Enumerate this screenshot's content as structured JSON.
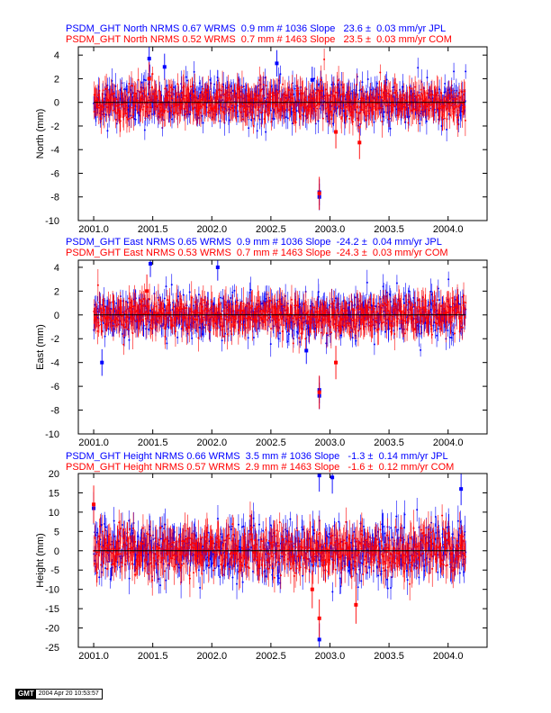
{
  "colors": {
    "jpl": "#0000ff",
    "com": "#ff0000",
    "zero_line": "#000000"
  },
  "stamp": {
    "logo": "GMT",
    "timestamp": "2004 Apr 20 10:53:57"
  },
  "chart_data": [
    {
      "type": "scatter",
      "headers": [
        "PSDM_GHT North NRMS 0.67 WRMS  0.9 mm # 1036 Slope   23.6 ±  0.03 mm/yr JPL",
        "PSDM_GHT North NRMS 0.52 WRMS  0.7 mm # 1463 Slope   23.5 ±  0.03 mm/yr COM"
      ],
      "ylabel": "North (mm)",
      "xlim": [
        2000.87,
        2004.33
      ],
      "ylim": [
        -10,
        4.7
      ],
      "x_ticks": [
        2001.0,
        2001.5,
        2002.0,
        2002.5,
        2003.0,
        2003.5,
        2004.0
      ],
      "x_tick_labels": [
        "2001.0",
        "2001.5",
        "2002.0",
        "2002.5",
        "2003.0",
        "2003.5",
        "2004.0"
      ],
      "y_ticks": [
        -10,
        -8,
        -6,
        -4,
        -2,
        0,
        2,
        4
      ],
      "y_tick_labels": [
        "-10",
        "-8",
        "-6",
        "-4",
        "-2",
        "0",
        "2",
        "4"
      ],
      "series": [
        {
          "name": "JPL",
          "color": "#0000ff",
          "count": 1036,
          "wrms": 0.9,
          "sigma": 0.8,
          "x_range": [
            2001.0,
            2004.15
          ],
          "outliers": [
            [
              2001.47,
              3.7
            ],
            [
              2002.55,
              3.3
            ],
            [
              2002.91,
              -8.0
            ],
            [
              2002.91,
              -7.6
            ],
            [
              2001.6,
              3.0
            ],
            [
              2002.85,
              1.9
            ]
          ]
        },
        {
          "name": "COM",
          "color": "#ff0000",
          "count": 1463,
          "wrms": 0.7,
          "sigma": 1.0,
          "x_range": [
            2001.0,
            2004.15
          ],
          "outliers": [
            [
              2002.91,
              -7.7
            ],
            [
              2001.47,
              2.0
            ],
            [
              2003.05,
              -2.5
            ],
            [
              2003.25,
              -3.4
            ]
          ]
        }
      ]
    },
    {
      "type": "scatter",
      "headers": [
        "PSDM_GHT East NRMS 0.65 WRMS  0.9 mm # 1036 Slope  -24.2 ±  0.04 mm/yr JPL",
        "PSDM_GHT East NRMS 0.53 WRMS  0.7 mm # 1463 Slope  -24.3 ±  0.03 mm/yr COM"
      ],
      "ylabel": "East (mm)",
      "xlim": [
        2000.87,
        2004.33
      ],
      "ylim": [
        -10,
        4.6
      ],
      "x_ticks": [
        2001.0,
        2001.5,
        2002.0,
        2002.5,
        2003.0,
        2003.5,
        2004.0
      ],
      "x_tick_labels": [
        "2001.0",
        "2001.5",
        "2002.0",
        "2002.5",
        "2003.0",
        "2003.5",
        "2004.0"
      ],
      "y_ticks": [
        -10,
        -8,
        -6,
        -4,
        -2,
        0,
        2,
        4
      ],
      "y_tick_labels": [
        "-10",
        "-8",
        "-6",
        "-4",
        "-2",
        "0",
        "2",
        "4"
      ],
      "series": [
        {
          "name": "JPL",
          "color": "#0000ff",
          "count": 1036,
          "wrms": 0.9,
          "sigma": 0.8,
          "x_range": [
            2001.0,
            2004.15
          ],
          "outliers": [
            [
              2001.48,
              4.3
            ],
            [
              2002.05,
              4.0
            ],
            [
              2002.91,
              -6.8
            ],
            [
              2002.91,
              -6.3
            ],
            [
              2002.8,
              -3.0
            ],
            [
              2001.07,
              -4.0
            ]
          ]
        },
        {
          "name": "COM",
          "color": "#ff0000",
          "count": 1463,
          "wrms": 0.7,
          "sigma": 1.0,
          "x_range": [
            2001.0,
            2004.15
          ],
          "outliers": [
            [
              2002.91,
              -6.5
            ],
            [
              2001.45,
              2.0
            ],
            [
              2003.05,
              -4.0
            ]
          ]
        }
      ]
    },
    {
      "type": "scatter",
      "headers": [
        "PSDM_GHT Height NRMS 0.66 WRMS  3.5 mm # 1036 Slope   -1.3 ±  0.14 mm/yr JPL",
        "PSDM_GHT Height NRMS 0.57 WRMS  2.9 mm # 1463 Slope   -1.6 ±  0.12 mm/yr COM"
      ],
      "ylabel": "Height (mm)",
      "xlim": [
        2000.87,
        2004.33
      ],
      "ylim": [
        -25,
        20
      ],
      "x_ticks": [
        2001.0,
        2001.5,
        2002.0,
        2002.5,
        2003.0,
        2003.5,
        2004.0
      ],
      "x_tick_labels": [
        "2001.0",
        "2001.5",
        "2002.0",
        "2002.5",
        "2003.0",
        "2003.5",
        "2004.0"
      ],
      "y_ticks": [
        -25,
        -20,
        -15,
        -10,
        -5,
        0,
        5,
        10,
        15,
        20
      ],
      "y_tick_labels": [
        "-25",
        "-20",
        "-15",
        "-10",
        "-5",
        "0",
        "5",
        "10",
        "15",
        "20"
      ],
      "series": [
        {
          "name": "JPL",
          "color": "#0000ff",
          "count": 1036,
          "wrms": 3.5,
          "sigma": 3.0,
          "x_range": [
            2001.0,
            2004.15
          ],
          "outliers": [
            [
              2002.91,
              19.5
            ],
            [
              2003.02,
              19.0
            ],
            [
              2002.91,
              -23.0
            ],
            [
              2004.11,
              16.0
            ],
            [
              2001.0,
              11.0
            ]
          ]
        },
        {
          "name": "COM",
          "color": "#ff0000",
          "count": 1463,
          "wrms": 2.9,
          "sigma": 3.5,
          "x_range": [
            2001.0,
            2004.15
          ],
          "outliers": [
            [
              2002.91,
              -17.5
            ],
            [
              2003.22,
              -14.0
            ],
            [
              2001.0,
              12.0
            ],
            [
              2002.85,
              -10.0
            ]
          ]
        }
      ]
    }
  ]
}
